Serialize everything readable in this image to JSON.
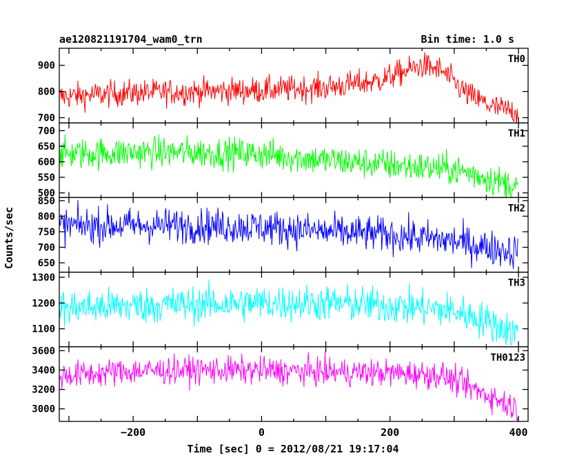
{
  "header": {
    "title": "ae120821191704_wam0_trn",
    "bin_time": "Bin time: 1.0 s"
  },
  "chart_data": {
    "type": "line",
    "xlabel": "Time [sec] 0 = 2012/08/21 19:17:04",
    "ylabel": "Counts/sec",
    "xlim": [
      -315,
      415
    ],
    "xticks": [
      -200,
      0,
      200,
      400
    ],
    "x_range": [
      -315,
      399
    ],
    "bin_time": 1.0,
    "panels": [
      {
        "name": "TH0",
        "color": "#ff0000",
        "ylim": [
          680,
          965
        ],
        "yticks": [
          700,
          800,
          900
        ],
        "trend": [
          [
            -315,
            780
          ],
          [
            -200,
            795
          ],
          [
            -100,
            800
          ],
          [
            0,
            805
          ],
          [
            100,
            815
          ],
          [
            180,
            840
          ],
          [
            250,
            900
          ],
          [
            280,
            880
          ],
          [
            320,
            790
          ],
          [
            360,
            740
          ],
          [
            399,
            720
          ]
        ],
        "noise": 25
      },
      {
        "name": "TH1",
        "color": "#00ff00",
        "ylim": [
          485,
          725
        ],
        "yticks": [
          500,
          550,
          600,
          650,
          700
        ],
        "trend": [
          [
            -315,
            625
          ],
          [
            -200,
            630
          ],
          [
            -100,
            630
          ],
          [
            0,
            625
          ],
          [
            100,
            605
          ],
          [
            200,
            590
          ],
          [
            300,
            575
          ],
          [
            340,
            555
          ],
          [
            380,
            530
          ],
          [
            399,
            520
          ]
        ],
        "noise": 25
      },
      {
        "name": "TH2",
        "color": "#0000ff",
        "ylim": [
          620,
          860
        ],
        "yticks": [
          650,
          700,
          750,
          800,
          850
        ],
        "trend": [
          [
            -315,
            770
          ],
          [
            -200,
            770
          ],
          [
            -100,
            770
          ],
          [
            0,
            765
          ],
          [
            100,
            750
          ],
          [
            200,
            740
          ],
          [
            300,
            720
          ],
          [
            350,
            700
          ],
          [
            399,
            685
          ]
        ],
        "noise": 28
      },
      {
        "name": "TH3",
        "color": "#00ffff",
        "ylim": [
          1030,
          1320
        ],
        "yticks": [
          1100,
          1200,
          1300
        ],
        "trend": [
          [
            -315,
            1180
          ],
          [
            -200,
            1190
          ],
          [
            -100,
            1195
          ],
          [
            0,
            1200
          ],
          [
            100,
            1200
          ],
          [
            200,
            1190
          ],
          [
            300,
            1170
          ],
          [
            350,
            1130
          ],
          [
            399,
            1080
          ]
        ],
        "noise": 35
      },
      {
        "name": "TH0123",
        "color": "#ff00ff",
        "ylim": [
          2870,
          3640
        ],
        "yticks": [
          3000,
          3200,
          3400,
          3600
        ],
        "trend": [
          [
            -315,
            3340
          ],
          [
            -200,
            3390
          ],
          [
            -100,
            3400
          ],
          [
            0,
            3395
          ],
          [
            100,
            3380
          ],
          [
            200,
            3370
          ],
          [
            280,
            3350
          ],
          [
            320,
            3230
          ],
          [
            360,
            3120
          ],
          [
            399,
            3000
          ]
        ],
        "noise": 70
      }
    ]
  }
}
